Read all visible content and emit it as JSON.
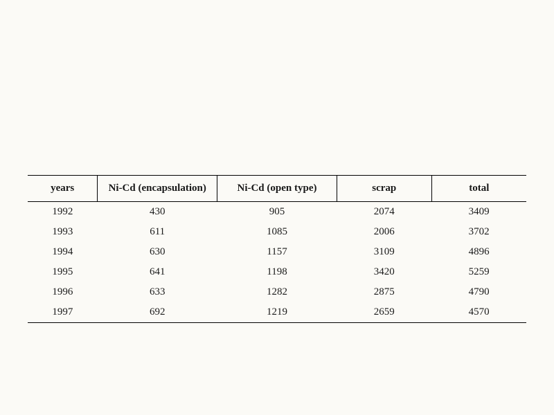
{
  "table": {
    "type": "table",
    "background_color": "#fbfaf6",
    "text_color": "#1a1a1a",
    "border_color": "#000000",
    "header_border_width": 1.5,
    "body_font_size": 15,
    "header_font_size": 15,
    "header_font_weight": "bold",
    "columns": [
      {
        "key": "years",
        "label": "years",
        "width_pct": 14
      },
      {
        "key": "encap",
        "label": "Ni-Cd (encapsulation)",
        "width_pct": 24
      },
      {
        "key": "open",
        "label": "Ni-Cd (open type)",
        "width_pct": 24
      },
      {
        "key": "scrap",
        "label": "scrap",
        "width_pct": 19
      },
      {
        "key": "total",
        "label": "total",
        "width_pct": 19
      }
    ],
    "rows": [
      {
        "years": "1992",
        "encap": "430",
        "open": "905",
        "scrap": "2074",
        "total": "3409"
      },
      {
        "years": "1993",
        "encap": "611",
        "open": "1085",
        "scrap": "2006",
        "total": "3702"
      },
      {
        "years": "1994",
        "encap": "630",
        "open": "1157",
        "scrap": "3109",
        "total": "4896"
      },
      {
        "years": "1995",
        "encap": "641",
        "open": "1198",
        "scrap": "3420",
        "total": "5259"
      },
      {
        "years": "1996",
        "encap": "633",
        "open": "1282",
        "scrap": "2875",
        "total": "4790"
      },
      {
        "years": "1997",
        "encap": "692",
        "open": "1219",
        "scrap": "2659",
        "total": "4570"
      }
    ]
  }
}
